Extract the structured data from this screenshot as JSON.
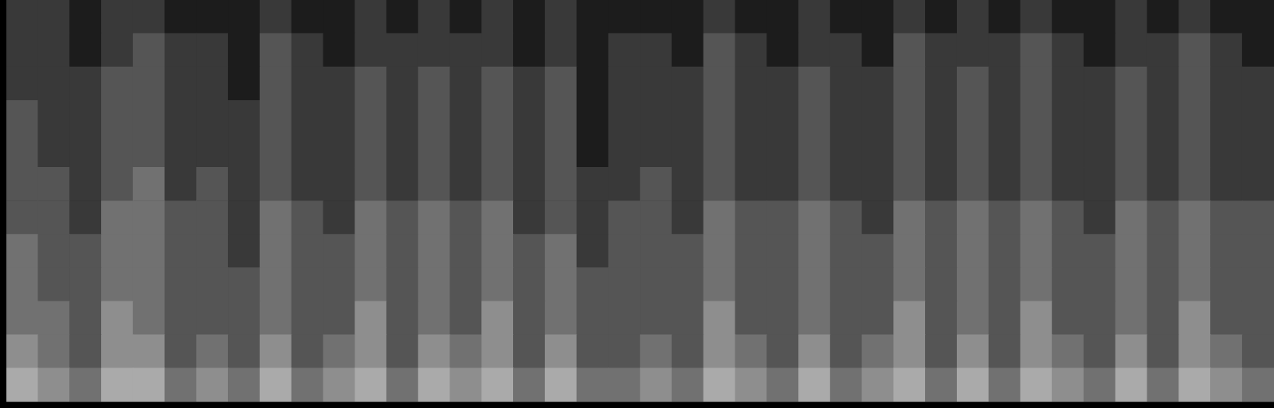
{
  "chart_data": {
    "type": "heatmap",
    "tick_labels": false,
    "grid": false,
    "categories": [
      null,
      null,
      null,
      null,
      null,
      null,
      null,
      null,
      null,
      null,
      null,
      null,
      null,
      null,
      null,
      null,
      null,
      null,
      null,
      null,
      null,
      null,
      null,
      null,
      null,
      null,
      null,
      null,
      null,
      null,
      null,
      null,
      null,
      null,
      null,
      null,
      null,
      null,
      null,
      null
    ],
    "xlim": [
      0,
      40
    ],
    "ylim": [
      0,
      12
    ],
    "color_range": [
      0,
      9
    ],
    "cells": [
      [
        6,
        5,
        4,
        6,
        6,
        4,
        5,
        4,
        6,
        4,
        5,
        6,
        4,
        6,
        5,
        6,
        4,
        6,
        4,
        4,
        5,
        4,
        6,
        5,
        4,
        6,
        4,
        5,
        6,
        4,
        6,
        4,
        6,
        5,
        4,
        6,
        4,
        6,
        5,
        4
      ],
      [
        5,
        4,
        3,
        5,
        5,
        3,
        4,
        3,
        5,
        3,
        4,
        5,
        3,
        5,
        4,
        5,
        3,
        5,
        3,
        3,
        4,
        3,
        5,
        4,
        3,
        5,
        3,
        4,
        5,
        3,
        5,
        3,
        5,
        4,
        3,
        5,
        3,
        5,
        4,
        3
      ],
      [
        4,
        4,
        3,
        5,
        4,
        3,
        3,
        3,
        4,
        3,
        3,
        5,
        3,
        4,
        3,
        5,
        3,
        4,
        3,
        3,
        3,
        3,
        5,
        3,
        3,
        4,
        3,
        3,
        5,
        3,
        4,
        3,
        5,
        3,
        3,
        4,
        3,
        5,
        3,
        3
      ],
      [
        4,
        3,
        3,
        4,
        4,
        3,
        3,
        3,
        4,
        3,
        3,
        4,
        3,
        4,
        3,
        4,
        3,
        4,
        3,
        3,
        3,
        3,
        4,
        3,
        3,
        4,
        3,
        3,
        4,
        3,
        4,
        3,
        4,
        3,
        3,
        4,
        3,
        4,
        3,
        3
      ],
      [
        4,
        3,
        3,
        4,
        4,
        3,
        3,
        2,
        4,
        3,
        3,
        4,
        3,
        4,
        3,
        4,
        3,
        4,
        2,
        3,
        3,
        3,
        4,
        3,
        3,
        4,
        3,
        3,
        4,
        3,
        4,
        3,
        4,
        3,
        3,
        4,
        3,
        4,
        3,
        3
      ],
      [
        3,
        3,
        2,
        4,
        4,
        3,
        3,
        2,
        4,
        3,
        2,
        4,
        3,
        4,
        3,
        4,
        2,
        3,
        2,
        3,
        3,
        2,
        4,
        3,
        3,
        4,
        3,
        2,
        4,
        3,
        4,
        3,
        4,
        3,
        2,
        4,
        3,
        4,
        3,
        3
      ],
      [
        3,
        3,
        2,
        3,
        4,
        2,
        3,
        2,
        3,
        2,
        2,
        3,
        2,
        3,
        2,
        3,
        2,
        3,
        2,
        2,
        3,
        2,
        3,
        2,
        2,
        3,
        2,
        2,
        3,
        2,
        3,
        2,
        3,
        2,
        2,
        3,
        2,
        3,
        2,
        2
      ],
      [
        3,
        2,
        2,
        3,
        3,
        2,
        2,
        2,
        3,
        2,
        2,
        3,
        2,
        3,
        2,
        3,
        2,
        3,
        1,
        2,
        2,
        2,
        3,
        2,
        2,
        3,
        2,
        2,
        3,
        2,
        3,
        2,
        3,
        2,
        2,
        3,
        2,
        3,
        2,
        2
      ],
      [
        3,
        2,
        2,
        3,
        3,
        2,
        2,
        2,
        3,
        2,
        2,
        3,
        2,
        3,
        2,
        3,
        2,
        3,
        1,
        2,
        2,
        2,
        3,
        2,
        2,
        3,
        2,
        2,
        3,
        2,
        3,
        2,
        3,
        2,
        2,
        3,
        2,
        3,
        2,
        2
      ],
      [
        2,
        2,
        2,
        3,
        3,
        2,
        2,
        1,
        3,
        2,
        2,
        3,
        2,
        3,
        2,
        3,
        2,
        3,
        1,
        2,
        2,
        2,
        3,
        2,
        2,
        3,
        2,
        2,
        3,
        2,
        3,
        2,
        3,
        2,
        2,
        3,
        2,
        3,
        2,
        2
      ],
      [
        2,
        2,
        1,
        2,
        3,
        2,
        2,
        1,
        3,
        2,
        1,
        2,
        2,
        2,
        2,
        2,
        1,
        2,
        1,
        2,
        2,
        1,
        3,
        2,
        1,
        2,
        2,
        1,
        3,
        2,
        2,
        2,
        3,
        2,
        1,
        2,
        2,
        3,
        2,
        1
      ],
      [
        2,
        2,
        1,
        2,
        2,
        1,
        1,
        1,
        2,
        1,
        1,
        2,
        1,
        2,
        1,
        2,
        1,
        2,
        1,
        1,
        1,
        1,
        2,
        1,
        1,
        2,
        1,
        1,
        2,
        1,
        2,
        1,
        2,
        1,
        1,
        2,
        1,
        2,
        1,
        1
      ]
    ]
  }
}
